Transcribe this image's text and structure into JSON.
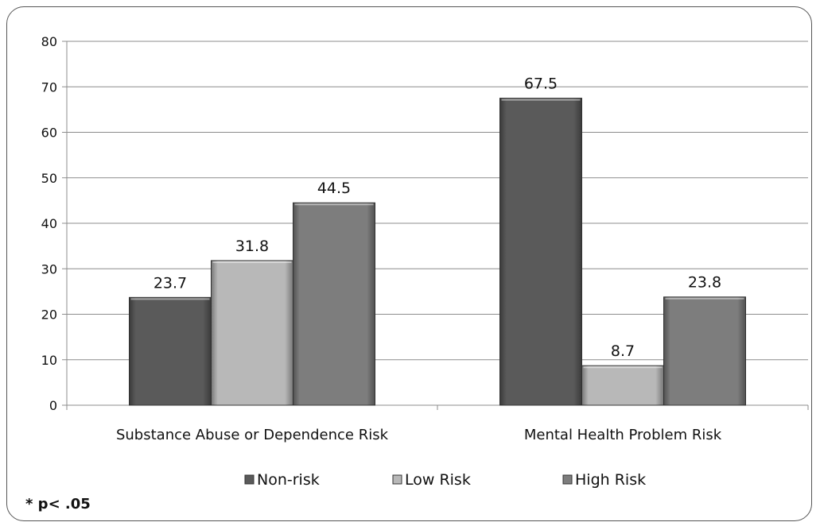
{
  "chart_data": {
    "type": "bar",
    "categories": [
      "Substance Abuse or Dependence Risk",
      "Mental Health Problem Risk"
    ],
    "series": [
      {
        "name": "Non-risk",
        "values": [
          23.7,
          67.5
        ],
        "color": "#5a5a5a"
      },
      {
        "name": "Low Risk",
        "values": [
          31.8,
          8.7
        ],
        "color": "#b8b8b8"
      },
      {
        "name": "High Risk",
        "values": [
          44.5,
          23.8
        ],
        "color": "#7d7d7d"
      }
    ],
    "ylim": [
      0,
      80
    ],
    "yticks": [
      0,
      10,
      20,
      30,
      40,
      50,
      60,
      70,
      80
    ],
    "grid": true,
    "legend_position": "bottom",
    "title": "",
    "xlabel": "",
    "ylabel": ""
  },
  "footnote": "* p< .05"
}
